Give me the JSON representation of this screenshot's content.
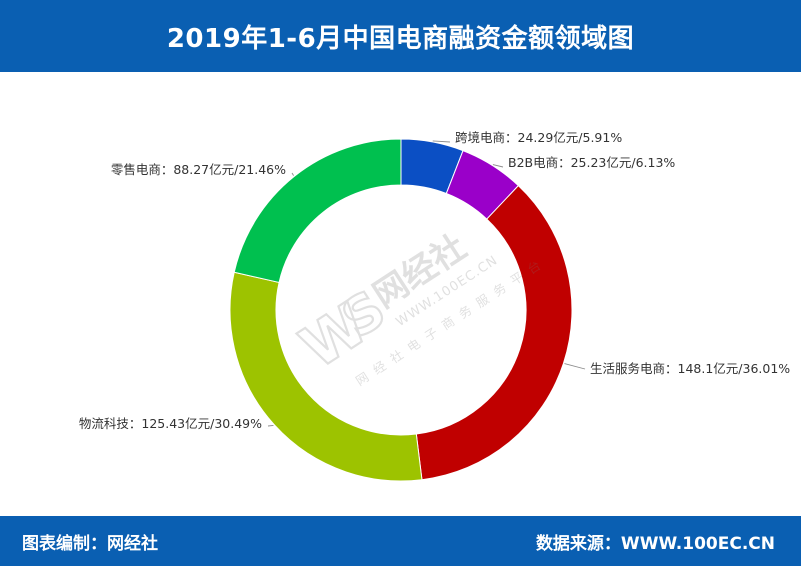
{
  "header": {
    "title": "2019年1-6月中国电商融资金额领域图"
  },
  "footer": {
    "left_text": "图表编制：网经社",
    "right_text": "数据来源：WWW.100EC.CN"
  },
  "watermark": {
    "logo_text": "网经社",
    "url_text": "WWW.100EC.CN",
    "slogan": "网 经 社 电 子 商 务 服 务 平 台"
  },
  "chart_data": {
    "type": "pie",
    "donut": true,
    "title": "2019年1-6月中国电商融资金额领域图",
    "unit": "亿元",
    "slices": [
      {
        "name": "跨境电商",
        "value": 24.29,
        "percent": 5.91,
        "color": "#0b4fc4",
        "label": "跨境电商：24.29亿元/5.91%"
      },
      {
        "name": "B2B电商",
        "value": 25.23,
        "percent": 6.13,
        "color": "#9a00c9",
        "label": "B2B电商：25.23亿元/6.13%"
      },
      {
        "name": "生活服务电商",
        "value": 148.1,
        "percent": 36.01,
        "color": "#c00000",
        "label": "生活服务电商：148.1亿元/36.01%"
      },
      {
        "name": "物流科技",
        "value": 125.43,
        "percent": 30.49,
        "color": "#9dc300",
        "label": "物流科技：125.43亿元/30.49%"
      },
      {
        "name": "零售电商",
        "value": 88.27,
        "percent": 21.46,
        "color": "#00c04f",
        "label": "零售电商：88.27亿元/21.46%"
      }
    ],
    "legend": "none"
  }
}
